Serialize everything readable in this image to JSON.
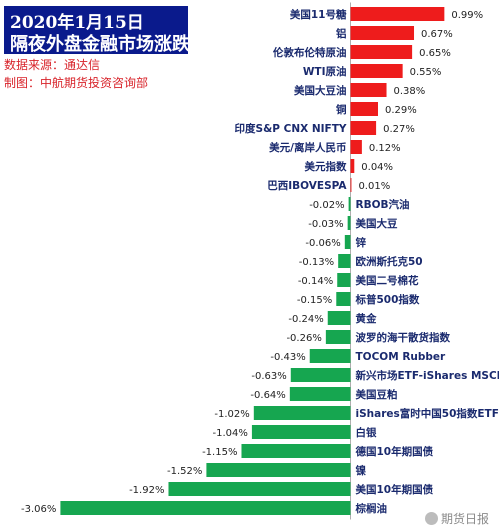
{
  "header": {
    "title_line_1": "2020年1月15日",
    "title_line_2": "隔夜外盘金融市场涨跌",
    "source_line": "数据来源：通达信",
    "maker_line": "制图：中航期货投资咨询部"
  },
  "watermark": {
    "text": "期货日报",
    "icon": "wechat-icon"
  },
  "colors": {
    "positive": "#ee1c1c",
    "negative": "#16a650",
    "label": "#1a2a6e",
    "title_bg": "#0a1a8c",
    "source_text": "#d8232a"
  },
  "chart_data": {
    "type": "bar",
    "orientation": "horizontal",
    "title": "",
    "xlabel": "",
    "ylabel": "",
    "grid": false,
    "legend": "none",
    "unit": "%",
    "xlim": [
      -3.06,
      0.99
    ],
    "categories": [
      "美国11号糖",
      "铝",
      "伦敦布伦特原油",
      "WTI原油",
      "美国大豆油",
      "铜",
      "印度S&P CNX NIFTY",
      "美元/离岸人民币",
      "美元指数",
      "巴西IBOVESPA",
      "RBOB汽油",
      "美国大豆",
      "锌",
      "欧洲斯托克50",
      "美国二号棉花",
      "标普500指数",
      "黄金",
      "波罗的海干散货指数",
      "TOCOM Rubber",
      "新兴市场ETF-iShares MSCI",
      "美国豆粕",
      "iShares富时中国50指数ETF",
      "白银",
      "德国10年期国债",
      "镍",
      "美国10年期国债",
      "棕榈油"
    ],
    "values": [
      0.99,
      0.67,
      0.65,
      0.55,
      0.38,
      0.29,
      0.27,
      0.12,
      0.04,
      0.01,
      -0.02,
      -0.03,
      -0.06,
      -0.13,
      -0.14,
      -0.15,
      -0.24,
      -0.26,
      -0.43,
      -0.63,
      -0.64,
      -1.02,
      -1.04,
      -1.15,
      -1.52,
      -1.92,
      -3.06
    ],
    "value_labels": [
      "0.99%",
      "0.67%",
      "0.65%",
      "0.55%",
      "0.38%",
      "0.29%",
      "0.27%",
      "0.12%",
      "0.04%",
      "0.01%",
      "-0.02%",
      "-0.03%",
      "-0.06%",
      "-0.13%",
      "-0.14%",
      "-0.15%",
      "-0.24%",
      "-0.26%",
      "-0.43%",
      "-0.63%",
      "-0.64%",
      "-1.02%",
      "-1.04%",
      "-1.15%",
      "-1.52%",
      "-1.92%",
      "-3.06%"
    ]
  }
}
